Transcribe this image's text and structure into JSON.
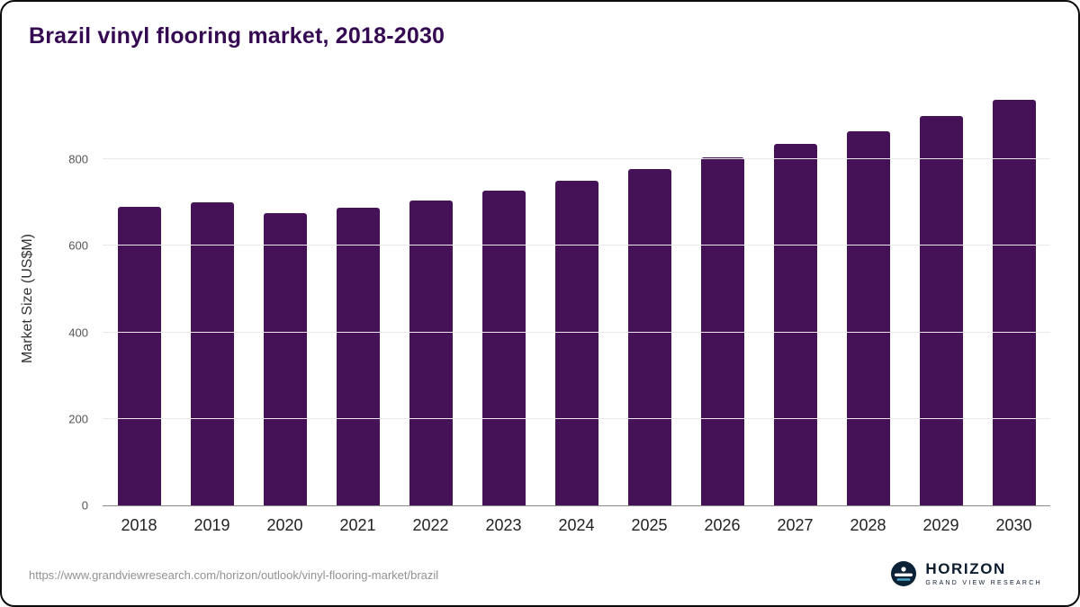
{
  "page": {
    "title": "Brazil vinyl flooring market, 2018-2030"
  },
  "chart_data": {
    "type": "bar",
    "categories": [
      "2018",
      "2019",
      "2020",
      "2021",
      "2022",
      "2023",
      "2024",
      "2025",
      "2026",
      "2027",
      "2028",
      "2029",
      "2030"
    ],
    "values": [
      690,
      700,
      675,
      688,
      705,
      728,
      750,
      778,
      805,
      835,
      865,
      900,
      938
    ],
    "title": "Brazil vinyl flooring market, 2018-2030",
    "xlabel": "",
    "ylabel": "Market Size (US$M)",
    "ylim": [
      0,
      956
    ],
    "yticks": [
      0,
      200,
      400,
      600,
      800
    ],
    "grid": true,
    "legend": false
  },
  "styles": {
    "bar_color": "#461257",
    "title_color": "#350a52",
    "gridline_color": "#e9e9e9",
    "logo_circle_color": "#0c2236",
    "logo_accent_color": "#4aa3c7"
  },
  "footer": {
    "source_url": "https://www.grandviewresearch.com/horizon/outlook/vinyl-flooring-market/brazil",
    "logo": {
      "brand": "HORIZON",
      "tagline": "GRAND VIEW RESEARCH",
      "icon": "horizon-logo-icon"
    }
  }
}
